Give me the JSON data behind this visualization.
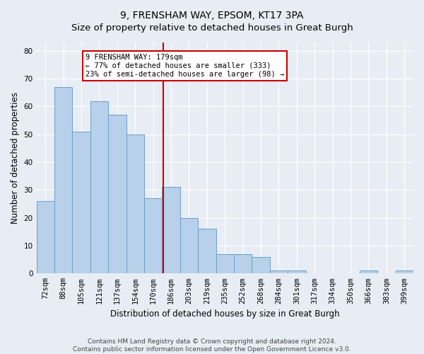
{
  "title": "9, FRENSHAM WAY, EPSOM, KT17 3PA",
  "subtitle": "Size of property relative to detached houses in Great Burgh",
  "xlabel": "Distribution of detached houses by size in Great Burgh",
  "ylabel": "Number of detached properties",
  "categories": [
    "72sqm",
    "88sqm",
    "105sqm",
    "121sqm",
    "137sqm",
    "154sqm",
    "170sqm",
    "186sqm",
    "203sqm",
    "219sqm",
    "235sqm",
    "252sqm",
    "268sqm",
    "284sqm",
    "301sqm",
    "317sqm",
    "334sqm",
    "350sqm",
    "366sqm",
    "383sqm",
    "399sqm"
  ],
  "values": [
    26,
    67,
    51,
    62,
    57,
    50,
    27,
    31,
    20,
    16,
    7,
    7,
    6,
    1,
    1,
    0,
    0,
    0,
    1,
    0,
    1
  ],
  "bar_color": "#b8d0ea",
  "bar_edge_color": "#6a9fc8",
  "vline_color": "#cc0000",
  "annotation_box_color": "#ffffff",
  "annotation_box_edge": "#cc0000",
  "property_line_label": "9 FRENSHAM WAY: 179sqm",
  "annotation_line1": "← 77% of detached houses are smaller (333)",
  "annotation_line2": "23% of semi-detached houses are larger (98) →",
  "ylim": [
    0,
    83
  ],
  "yticks": [
    0,
    10,
    20,
    30,
    40,
    50,
    60,
    70,
    80
  ],
  "footer_line1": "Contains HM Land Registry data © Crown copyright and database right 2024.",
  "footer_line2": "Contains public sector information licensed under the Open Government Licence v3.0.",
  "bg_color": "#e8edf5",
  "title_fontsize": 10,
  "axis_label_fontsize": 8.5,
  "tick_fontsize": 7.5,
  "footer_fontsize": 6.5,
  "annotation_fontsize": 7.5
}
